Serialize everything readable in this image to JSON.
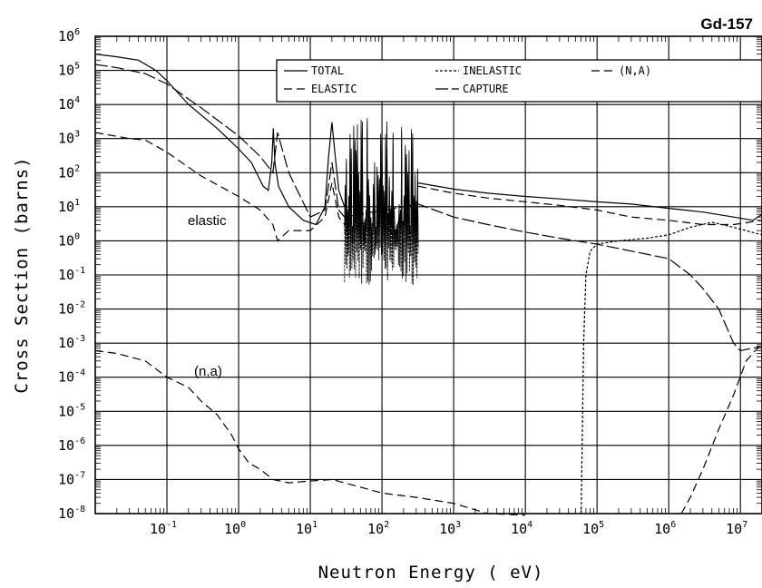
{
  "chart_data": {
    "type": "line",
    "title": "Gd-157",
    "xlabel": "Neutron Energy ( eV)",
    "ylabel": "Cross Section (barns)",
    "xscale": "log",
    "yscale": "log",
    "xlim": [
      0.01,
      20000000
    ],
    "ylim": [
      1e-08,
      1000000.0
    ],
    "grid": true,
    "legend_position": "top-right",
    "x_tick_labels": [
      {
        "base": "10",
        "exp": "-1",
        "value": 0.1
      },
      {
        "base": "10",
        "exp": "0",
        "value": 1
      },
      {
        "base": "10",
        "exp": "1",
        "value": 10
      },
      {
        "base": "10",
        "exp": "2",
        "value": 100
      },
      {
        "base": "10",
        "exp": "3",
        "value": 1000
      },
      {
        "base": "10",
        "exp": "4",
        "value": 10000
      },
      {
        "base": "10",
        "exp": "5",
        "value": 100000
      },
      {
        "base": "10",
        "exp": "6",
        "value": 1000000
      },
      {
        "base": "10",
        "exp": "7",
        "value": 10000000
      }
    ],
    "y_tick_labels": [
      {
        "base": "10",
        "exp": "6",
        "value": 1000000.0
      },
      {
        "base": "10",
        "exp": "5",
        "value": 100000.0
      },
      {
        "base": "10",
        "exp": "4",
        "value": 10000.0
      },
      {
        "base": "10",
        "exp": "3",
        "value": 1000.0
      },
      {
        "base": "10",
        "exp": "2",
        "value": 100.0
      },
      {
        "base": "10",
        "exp": "1",
        "value": 10.0
      },
      {
        "base": "10",
        "exp": "0",
        "value": 1
      },
      {
        "base": "10",
        "exp": "-1",
        "value": 0.1
      },
      {
        "base": "10",
        "exp": "-2",
        "value": 0.01
      },
      {
        "base": "10",
        "exp": "-3",
        "value": 0.001
      },
      {
        "base": "10",
        "exp": "-4",
        "value": 0.0001
      },
      {
        "base": "10",
        "exp": "-5",
        "value": 1e-05
      },
      {
        "base": "10",
        "exp": "-6",
        "value": 1e-06
      },
      {
        "base": "10",
        "exp": "-7",
        "value": 1e-07
      },
      {
        "base": "10",
        "exp": "-8",
        "value": 1e-08
      }
    ],
    "legend": [
      {
        "label": "TOTAL",
        "dash": "solid"
      },
      {
        "label": "INELASTIC",
        "dash": "fine-dashed"
      },
      {
        "label": "(N,A)",
        "dash": "dashed"
      },
      {
        "label": "ELASTIC",
        "dash": "dashed"
      },
      {
        "label": "CAPTURE",
        "dash": "long-dashed"
      }
    ],
    "annotations": [
      {
        "text": "elastic",
        "x": 8,
        "y": 3
      },
      {
        "text": "(n,a)",
        "x": 0.5,
        "y": 2e-05
      }
    ],
    "series": [
      {
        "name": "TOTAL",
        "dash": "solid",
        "x": [
          0.01,
          0.02,
          0.04,
          0.07,
          0.1,
          0.2,
          0.5,
          1,
          1.5,
          2.2,
          2.6,
          2.9,
          3.05,
          3.2,
          3.6,
          5,
          8,
          12,
          16,
          18,
          20,
          22,
          25,
          30
        ],
        "y": [
          300000,
          250000,
          200000,
          100000,
          50000,
          10000,
          2000,
          500,
          200,
          40,
          30,
          200,
          2000,
          200,
          40,
          10,
          4,
          3,
          10,
          300,
          3000,
          400,
          30,
          10
        ],
        "resonance_region": [
          30,
          320
        ],
        "x2": [
          320,
          1000,
          3000,
          10000,
          30000,
          100000,
          300000,
          1000000,
          3000000,
          8000000,
          15000000,
          20000000
        ],
        "y2": [
          50,
          33,
          25,
          20,
          17,
          14,
          12,
          9,
          7,
          5,
          4,
          6
        ]
      },
      {
        "name": "ELASTIC",
        "dash": "dashed",
        "x": [
          0.01,
          0.03,
          0.05,
          0.1,
          0.3,
          1,
          2,
          3,
          3.5,
          5,
          10,
          16,
          20,
          25,
          30
        ],
        "y": [
          1500,
          1000,
          900,
          400,
          80,
          20,
          8,
          3,
          1,
          2,
          2,
          5,
          50,
          5,
          3
        ],
        "x2": [
          320,
          1000,
          3000,
          10000,
          30000,
          100000,
          300000,
          1000000,
          3000000,
          8000000,
          20000000
        ],
        "y2": [
          40,
          25,
          18,
          14,
          11,
          8,
          5,
          4,
          3,
          3,
          4
        ]
      },
      {
        "name": "INELASTIC",
        "dash": "fine-dashed",
        "x": [
          60000,
          65000,
          70000,
          80000,
          100000,
          200000,
          500000,
          1000000,
          2000000,
          4000000,
          8000000,
          20000000
        ],
        "y": [
          1e-08,
          0.001,
          0.1,
          0.5,
          0.8,
          1,
          1.2,
          1.5,
          2.5,
          3.5,
          2.5,
          1.5
        ]
      },
      {
        "name": "CAPTURE",
        "dash": "long-dashed",
        "x": [
          0.01,
          0.02,
          0.05,
          0.1,
          0.3,
          1,
          2,
          3,
          3.5,
          5,
          10,
          16,
          20,
          25,
          30,
          320,
          1000,
          3000,
          10000,
          30000,
          100000,
          300000,
          1000000,
          2000000,
          3000000,
          5000000,
          8000000,
          10000000,
          14000000,
          20000000
        ],
        "y": [
          150000,
          120000,
          80000,
          40000,
          8000,
          1200,
          300,
          100,
          1500,
          100,
          5,
          8,
          200,
          8,
          5,
          12,
          5,
          3,
          1.8,
          1.2,
          0.8,
          0.5,
          0.3,
          0.1,
          0.04,
          0.01,
          0.001,
          0.0006,
          0.0007,
          0.0008
        ]
      },
      {
        "name": "(N,A)",
        "dash": "dashed",
        "x": [
          0.01,
          0.02,
          0.05,
          0.1,
          0.2,
          0.3,
          0.5,
          0.8,
          1,
          1.4,
          2,
          3,
          5,
          10,
          20,
          50,
          100,
          300,
          1000,
          3000,
          10000
        ],
        "y": [
          0.0006,
          0.0005,
          0.0003,
          0.0001,
          5e-05,
          2e-05,
          8e-06,
          2e-06,
          8e-07,
          3e-07,
          2e-07,
          1e-07,
          8e-08,
          9e-08,
          1e-07,
          6e-08,
          4e-08,
          3e-08,
          2e-08,
          1e-08,
          9e-09
        ],
        "x2": [
          1500000,
          2000000,
          3000000,
          5000000,
          8000000,
          12000000,
          20000000
        ],
        "y2": [
          1e-08,
          3e-08,
          2e-07,
          3e-06,
          3e-05,
          0.0003,
          0.001
        ]
      }
    ]
  }
}
